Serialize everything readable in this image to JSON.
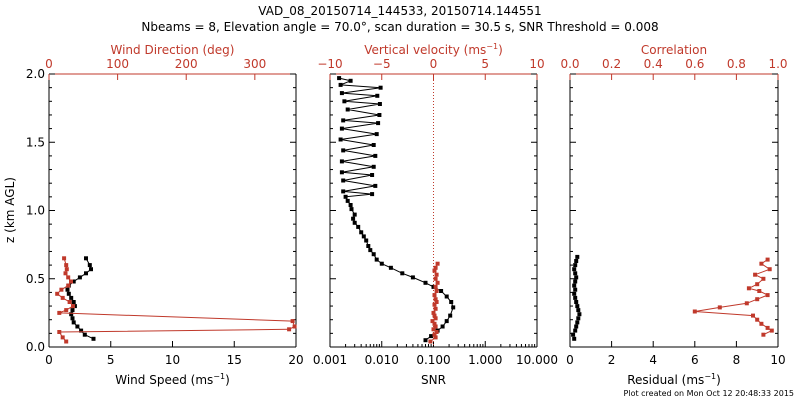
{
  "title_line1": "VAD_08_20150714_144533, 20150714.144551",
  "title_line2": "Nbeams = 8, Elevation angle = 70.0°, scan duration = 30.5 s, SNR Threshold = 0.008",
  "footer": "Plot created on Mon Oct 12 20:48:33 2015",
  "colors": {
    "primary": "#000000",
    "secondary": "#c0392b"
  },
  "ylabel": "z (km AGL)",
  "chart_data": [
    {
      "type": "line",
      "ylim": [
        0,
        2
      ],
      "yticks": [
        "0.0",
        "0.5",
        "1.0",
        "1.5",
        "2.0"
      ],
      "bottom_axis": {
        "label_main": "Wind Speed (ms",
        "label_sup": "−1",
        "label_end": ")",
        "xlim": [
          0,
          20
        ],
        "ticks": [
          "0",
          "5",
          "10",
          "15",
          "20"
        ]
      },
      "top_axis": {
        "label": "Wind Direction (deg)",
        "xlim": [
          0,
          360
        ],
        "ticks": [
          "0",
          "100",
          "200",
          "300"
        ]
      },
      "series": [
        {
          "axis": "bottom",
          "color": "#000000",
          "x": [
            3.6,
            2.9,
            2.6,
            2.3,
            2.0,
            1.9,
            1.8,
            1.9,
            2.1,
            2.0,
            1.8,
            1.6,
            1.5,
            1.6,
            2.0,
            2.5,
            3.0,
            3.4,
            3.3,
            3.0
          ],
          "z": [
            0.06,
            0.09,
            0.12,
            0.15,
            0.18,
            0.21,
            0.24,
            0.27,
            0.3,
            0.33,
            0.36,
            0.39,
            0.42,
            0.45,
            0.48,
            0.51,
            0.54,
            0.57,
            0.6,
            0.65
          ]
        },
        {
          "axis": "top",
          "color": "#c0392b",
          "x": [
            25,
            20,
            15,
            350,
            358,
            355,
            15,
            25,
            35,
            30,
            20,
            12,
            18,
            28,
            32,
            28,
            24,
            26,
            25,
            22
          ],
          "z": [
            0.04,
            0.07,
            0.11,
            0.13,
            0.15,
            0.19,
            0.25,
            0.27,
            0.3,
            0.33,
            0.36,
            0.39,
            0.42,
            0.45,
            0.48,
            0.51,
            0.54,
            0.57,
            0.6,
            0.65
          ]
        }
      ]
    },
    {
      "type": "line",
      "ylim": [
        0,
        2
      ],
      "bottom_axis": {
        "label": "SNR",
        "scale": "log",
        "xlim": [
          0.001,
          10
        ],
        "ticks": [
          "0.001",
          "0.010",
          "0.100",
          "1.000",
          "10.000"
        ]
      },
      "top_axis": {
        "label_main": "Vertical velocity (ms",
        "label_sup": "−1",
        "label_end": ")",
        "xlim": [
          -10,
          10
        ],
        "ticks": [
          "−10",
          "−5",
          "0",
          "5",
          "10"
        ],
        "reference_line": 0
      },
      "series": [
        {
          "axis": "bottom",
          "color": "#000000",
          "x": [
            0.07,
            0.09,
            0.12,
            0.15,
            0.18,
            0.21,
            0.24,
            0.22,
            0.18,
            0.14,
            0.1,
            0.07,
            0.04,
            0.025,
            0.015,
            0.01,
            0.008,
            0.007,
            0.006,
            0.0055,
            0.005,
            0.0045,
            0.004,
            0.0035,
            0.003,
            0.0028,
            0.003,
            0.0026,
            0.0025,
            0.0022,
            0.002,
            0.0065,
            0.0018,
            0.0075,
            0.0018,
            0.0065,
            0.0017,
            0.007,
            0.0017,
            0.0075,
            0.0018,
            0.007,
            0.0016,
            0.008,
            0.0017,
            0.0085,
            0.0018,
            0.009,
            0.0022,
            0.0092,
            0.0019,
            0.0082,
            0.0017,
            0.0095,
            0.0016,
            0.0025,
            0.0015
          ],
          "z": [
            0.05,
            0.08,
            0.12,
            0.15,
            0.19,
            0.23,
            0.29,
            0.33,
            0.37,
            0.41,
            0.44,
            0.47,
            0.51,
            0.54,
            0.58,
            0.61,
            0.64,
            0.68,
            0.71,
            0.74,
            0.78,
            0.81,
            0.84,
            0.88,
            0.91,
            0.94,
            0.97,
            1.01,
            1.04,
            1.07,
            1.1,
            1.12,
            1.14,
            1.18,
            1.22,
            1.26,
            1.28,
            1.32,
            1.36,
            1.4,
            1.44,
            1.48,
            1.52,
            1.56,
            1.6,
            1.64,
            1.66,
            1.7,
            1.74,
            1.78,
            1.8,
            1.84,
            1.86,
            1.9,
            1.92,
            1.95,
            1.97
          ]
        },
        {
          "axis": "top",
          "color": "#c0392b",
          "x": [
            -0.3,
            0.2,
            0.1,
            0.3,
            0.0,
            0.2,
            0.1,
            -0.1,
            0.2,
            0.1,
            0.0,
            0.2,
            0.1,
            0.3,
            0.2,
            0.1,
            0.3,
            0.2,
            0.4,
            0.2,
            0.3,
            0.1,
            0.2,
            0.4
          ],
          "z": [
            0.04,
            0.07,
            0.09,
            0.11,
            0.13,
            0.15,
            0.17,
            0.19,
            0.21,
            0.23,
            0.25,
            0.28,
            0.31,
            0.33,
            0.35,
            0.38,
            0.41,
            0.44,
            0.47,
            0.5,
            0.53,
            0.56,
            0.58,
            0.61
          ]
        }
      ]
    },
    {
      "type": "line",
      "ylim": [
        0,
        2
      ],
      "bottom_axis": {
        "label_main": "Residual (ms",
        "label_sup": "−1",
        "label_end": ")",
        "xlim": [
          0,
          10
        ],
        "ticks": [
          "0",
          "2",
          "4",
          "6",
          "8",
          "10"
        ]
      },
      "top_axis": {
        "label": "Correlation",
        "xlim": [
          0,
          1
        ],
        "ticks": [
          "0.0",
          "0.2",
          "0.4",
          "0.6",
          "0.8",
          "1.0"
        ]
      },
      "series": [
        {
          "axis": "bottom",
          "color": "#000000",
          "line": false,
          "x": [
            0.2,
            0.15,
            0.25,
            0.3,
            0.35,
            0.4,
            0.45,
            0.4,
            0.35,
            0.3,
            0.25,
            0.2,
            0.25,
            0.2,
            0.25,
            0.3,
            0.25,
            0.2,
            0.25,
            0.3,
            0.35
          ],
          "z": [
            0.06,
            0.09,
            0.12,
            0.15,
            0.18,
            0.21,
            0.24,
            0.27,
            0.3,
            0.33,
            0.36,
            0.39,
            0.42,
            0.45,
            0.48,
            0.51,
            0.54,
            0.57,
            0.6,
            0.63,
            0.66
          ]
        },
        {
          "axis": "top",
          "color": "#c0392b",
          "x": [
            0.93,
            0.97,
            0.95,
            0.92,
            0.9,
            0.88,
            0.6,
            0.72,
            0.85,
            0.9,
            0.95,
            0.91,
            0.86,
            0.9,
            0.93,
            0.89,
            0.96,
            0.92,
            0.95
          ],
          "z": [
            0.09,
            0.12,
            0.14,
            0.17,
            0.2,
            0.23,
            0.26,
            0.29,
            0.32,
            0.35,
            0.38,
            0.41,
            0.43,
            0.46,
            0.5,
            0.53,
            0.57,
            0.61,
            0.64
          ]
        }
      ]
    }
  ]
}
